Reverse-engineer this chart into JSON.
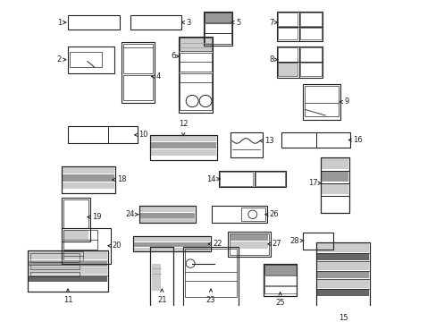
{
  "bg_color": "#ffffff",
  "line_color": "#222222",
  "gray_light": "#cccccc",
  "gray_mid": "#999999",
  "gray_dark": "#666666"
}
